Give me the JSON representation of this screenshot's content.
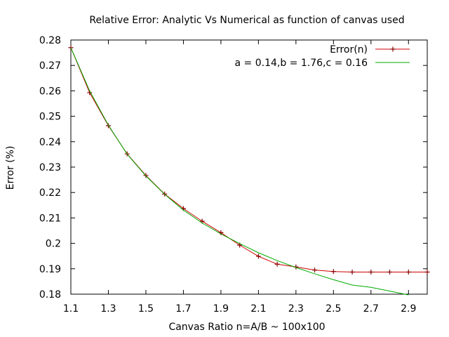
{
  "chart_data": {
    "type": "line",
    "title": "Relative Error: Analytic Vs Numerical as function of canvas used",
    "xlabel": "Canvas Ratio n=A/B ~ 100x100",
    "ylabel": "Error (%)",
    "xlim": [
      1.1,
      3.0
    ],
    "ylim": [
      0.18,
      0.28
    ],
    "xticks": [
      1.1,
      1.3,
      1.5,
      1.7,
      1.9,
      2.1,
      2.3,
      2.5,
      2.7,
      2.9
    ],
    "xtick_labels": [
      "1.1",
      "1.3",
      "1.5",
      "1.7",
      "1.9",
      "2.1",
      "2.3",
      "2.5",
      "2.7",
      "2.9"
    ],
    "yticks": [
      0.18,
      0.19,
      0.2,
      0.21,
      0.22,
      0.23,
      0.24,
      0.25,
      0.26,
      0.27,
      0.28
    ],
    "ytick_labels": [
      "0.18",
      "0.19",
      "0.2",
      "0.21",
      "0.22",
      "0.23",
      "0.24",
      "0.25",
      "0.26",
      "0.27",
      "0.28"
    ],
    "grid": false,
    "legend_position": "top-right",
    "series": [
      {
        "name": "Error(n)",
        "style": "linespoints",
        "marker": "plus",
        "color": "#cc0000",
        "markerColor": "#880000",
        "x": [
          1.1,
          1.2,
          1.3,
          1.4,
          1.5,
          1.6,
          1.7,
          1.8,
          1.9,
          2.0,
          2.1,
          2.2,
          2.3,
          2.4,
          2.5,
          2.6,
          2.7,
          2.8,
          2.9,
          3.0
        ],
        "values": [
          0.277,
          0.2593,
          0.2463,
          0.2352,
          0.2267,
          0.2194,
          0.2137,
          0.2087,
          0.2042,
          0.1993,
          0.1949,
          0.1918,
          0.1907,
          0.1895,
          0.1889,
          0.1887,
          0.1887,
          0.1887,
          0.1887,
          0.1887
        ]
      },
      {
        "name": "a = 0.14,b = 1.76,c = 0.16",
        "style": "lines",
        "color": "#00aa00",
        "x": [
          1.1,
          1.2,
          1.3,
          1.4,
          1.5,
          1.6,
          1.7,
          1.8,
          1.9,
          2.0,
          2.1,
          2.2,
          2.3,
          2.4,
          2.5,
          2.6,
          2.7,
          2.8,
          2.9
        ],
        "values": [
          0.277,
          0.26,
          0.2465,
          0.2351,
          0.2265,
          0.2193,
          0.2131,
          0.208,
          0.2037,
          0.1999,
          0.1963,
          0.1932,
          0.1905,
          0.188,
          0.1857,
          0.1836,
          0.1827,
          0.1812,
          0.1797
        ]
      }
    ]
  }
}
